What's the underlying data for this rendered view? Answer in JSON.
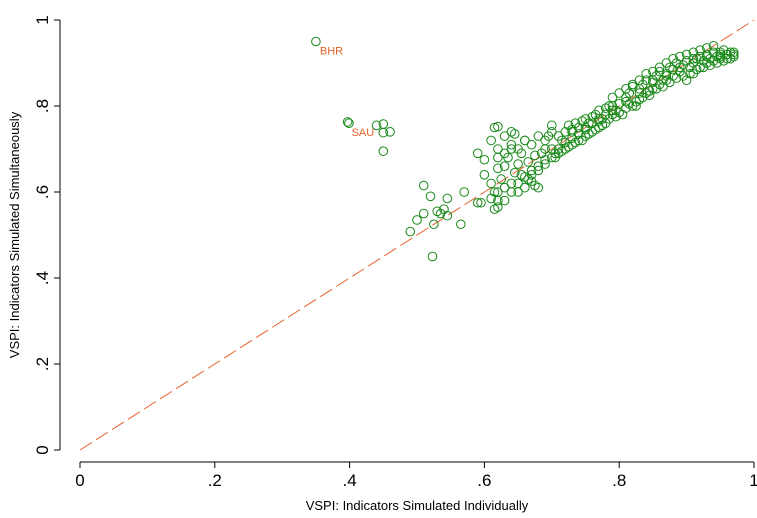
{
  "chart_data": {
    "type": "scatter",
    "xlabel": "VSPI: Indicators Simulated Individually",
    "ylabel": "VSPI: Indicators Simulated Simultaneously",
    "xlim": [
      0,
      1
    ],
    "ylim": [
      0,
      1
    ],
    "x_ticks": [
      0,
      0.2,
      0.4,
      0.6,
      0.8,
      1
    ],
    "x_tick_labels": [
      "0",
      ".2",
      ".4",
      ".6",
      ".8",
      "1"
    ],
    "y_ticks": [
      0,
      0.2,
      0.4,
      0.6,
      0.8,
      1
    ],
    "y_tick_labels": [
      "0",
      ".2",
      ".4",
      ".6",
      ".8",
      "1"
    ],
    "grid": false,
    "marker_color": "#1a8a1a",
    "reference_line": {
      "style": "dashed",
      "color": "#e8632b",
      "from": [
        0,
        0
      ],
      "to": [
        1,
        1
      ]
    },
    "annotations": [
      {
        "text": "BHR",
        "x": 0.35,
        "y": 0.95,
        "color": "#e8632b"
      },
      {
        "text": "SAU",
        "x": 0.397,
        "y": 0.76,
        "color": "#e8632b"
      }
    ],
    "series": [
      {
        "marker": "hollow-circle",
        "points": [
          [
            0.35,
            0.95
          ],
          [
            0.397,
            0.763
          ],
          [
            0.399,
            0.76
          ],
          [
            0.44,
            0.755
          ],
          [
            0.45,
            0.758
          ],
          [
            0.45,
            0.738
          ],
          [
            0.46,
            0.74
          ],
          [
            0.45,
            0.695
          ],
          [
            0.51,
            0.615
          ],
          [
            0.52,
            0.59
          ],
          [
            0.5,
            0.535
          ],
          [
            0.51,
            0.55
          ],
          [
            0.53,
            0.555
          ],
          [
            0.535,
            0.55
          ],
          [
            0.54,
            0.56
          ],
          [
            0.525,
            0.525
          ],
          [
            0.49,
            0.508
          ],
          [
            0.545,
            0.585
          ],
          [
            0.57,
            0.6
          ],
          [
            0.565,
            0.525
          ],
          [
            0.523,
            0.45
          ],
          [
            0.545,
            0.545
          ],
          [
            0.59,
            0.69
          ],
          [
            0.6,
            0.675
          ],
          [
            0.61,
            0.72
          ],
          [
            0.615,
            0.75
          ],
          [
            0.62,
            0.752
          ],
          [
            0.63,
            0.73
          ],
          [
            0.64,
            0.74
          ],
          [
            0.645,
            0.735
          ],
          [
            0.6,
            0.64
          ],
          [
            0.61,
            0.62
          ],
          [
            0.615,
            0.6
          ],
          [
            0.62,
            0.58
          ],
          [
            0.62,
            0.655
          ],
          [
            0.625,
            0.63
          ],
          [
            0.63,
            0.66
          ],
          [
            0.635,
            0.68
          ],
          [
            0.64,
            0.7
          ],
          [
            0.645,
            0.645
          ],
          [
            0.65,
            0.665
          ],
          [
            0.655,
            0.69
          ],
          [
            0.66,
            0.72
          ],
          [
            0.665,
            0.63
          ],
          [
            0.67,
            0.65
          ],
          [
            0.675,
            0.615
          ],
          [
            0.68,
            0.66
          ],
          [
            0.69,
            0.7
          ],
          [
            0.695,
            0.73
          ],
          [
            0.7,
            0.755
          ],
          [
            0.705,
            0.68
          ],
          [
            0.71,
            0.7
          ],
          [
            0.715,
            0.72
          ],
          [
            0.72,
            0.74
          ],
          [
            0.59,
            0.575
          ],
          [
            0.595,
            0.575
          ],
          [
            0.615,
            0.56
          ],
          [
            0.62,
            0.565
          ],
          [
            0.63,
            0.58
          ],
          [
            0.65,
            0.6
          ],
          [
            0.66,
            0.61
          ],
          [
            0.67,
            0.625
          ],
          [
            0.68,
            0.61
          ],
          [
            0.64,
            0.62
          ],
          [
            0.655,
            0.64
          ],
          [
            0.665,
            0.67
          ],
          [
            0.675,
            0.685
          ],
          [
            0.685,
            0.69
          ],
          [
            0.69,
            0.675
          ],
          [
            0.7,
            0.7
          ],
          [
            0.725,
            0.755
          ],
          [
            0.73,
            0.74
          ],
          [
            0.735,
            0.76
          ],
          [
            0.74,
            0.735
          ],
          [
            0.745,
            0.765
          ],
          [
            0.75,
            0.745
          ],
          [
            0.755,
            0.76
          ],
          [
            0.76,
            0.775
          ],
          [
            0.765,
            0.78
          ],
          [
            0.77,
            0.79
          ],
          [
            0.775,
            0.77
          ],
          [
            0.78,
            0.795
          ],
          [
            0.785,
            0.8
          ],
          [
            0.79,
            0.82
          ],
          [
            0.795,
            0.79
          ],
          [
            0.8,
            0.805
          ],
          [
            0.81,
            0.82
          ],
          [
            0.815,
            0.83
          ],
          [
            0.82,
            0.845
          ],
          [
            0.825,
            0.81
          ],
          [
            0.83,
            0.84
          ],
          [
            0.835,
            0.85
          ],
          [
            0.84,
            0.86
          ],
          [
            0.845,
            0.835
          ],
          [
            0.85,
            0.855
          ],
          [
            0.855,
            0.87
          ],
          [
            0.86,
            0.88
          ],
          [
            0.865,
            0.86
          ],
          [
            0.87,
            0.875
          ],
          [
            0.875,
            0.89
          ],
          [
            0.88,
            0.885
          ],
          [
            0.885,
            0.9
          ],
          [
            0.89,
            0.88
          ],
          [
            0.895,
            0.895
          ],
          [
            0.9,
            0.905
          ],
          [
            0.905,
            0.89
          ],
          [
            0.91,
            0.9
          ],
          [
            0.915,
            0.91
          ],
          [
            0.92,
            0.915
          ],
          [
            0.925,
            0.905
          ],
          [
            0.93,
            0.92
          ],
          [
            0.935,
            0.91
          ],
          [
            0.94,
            0.925
          ],
          [
            0.945,
            0.915
          ],
          [
            0.95,
            0.925
          ],
          [
            0.955,
            0.93
          ],
          [
            0.96,
            0.92
          ],
          [
            0.965,
            0.925
          ],
          [
            0.97,
            0.915
          ],
          [
            0.965,
            0.91
          ],
          [
            0.955,
            0.905
          ],
          [
            0.945,
            0.9
          ],
          [
            0.935,
            0.895
          ],
          [
            0.925,
            0.89
          ],
          [
            0.915,
            0.885
          ],
          [
            0.905,
            0.875
          ],
          [
            0.895,
            0.87
          ],
          [
            0.885,
            0.865
          ],
          [
            0.875,
            0.855
          ],
          [
            0.865,
            0.845
          ],
          [
            0.855,
            0.84
          ],
          [
            0.845,
            0.825
          ],
          [
            0.835,
            0.82
          ],
          [
            0.825,
            0.8
          ],
          [
            0.815,
            0.805
          ],
          [
            0.805,
            0.78
          ],
          [
            0.795,
            0.775
          ],
          [
            0.785,
            0.77
          ],
          [
            0.775,
            0.755
          ],
          [
            0.765,
            0.745
          ],
          [
            0.755,
            0.735
          ],
          [
            0.745,
            0.72
          ],
          [
            0.735,
            0.715
          ],
          [
            0.725,
            0.705
          ],
          [
            0.715,
            0.695
          ],
          [
            0.705,
            0.69
          ],
          [
            0.72,
            0.715
          ],
          [
            0.73,
            0.725
          ],
          [
            0.74,
            0.75
          ],
          [
            0.75,
            0.77
          ],
          [
            0.76,
            0.76
          ],
          [
            0.77,
            0.765
          ],
          [
            0.78,
            0.78
          ],
          [
            0.79,
            0.8
          ],
          [
            0.8,
            0.83
          ],
          [
            0.81,
            0.84
          ],
          [
            0.82,
            0.85
          ],
          [
            0.83,
            0.86
          ],
          [
            0.84,
            0.875
          ],
          [
            0.85,
            0.88
          ],
          [
            0.86,
            0.89
          ],
          [
            0.87,
            0.9
          ],
          [
            0.88,
            0.91
          ],
          [
            0.89,
            0.915
          ],
          [
            0.9,
            0.92
          ],
          [
            0.91,
            0.925
          ],
          [
            0.92,
            0.93
          ],
          [
            0.93,
            0.935
          ],
          [
            0.94,
            0.94
          ],
          [
            0.95,
            0.915
          ],
          [
            0.96,
            0.91
          ],
          [
            0.97,
            0.925
          ],
          [
            0.9,
            0.86
          ],
          [
            0.91,
            0.875
          ],
          [
            0.92,
            0.89
          ],
          [
            0.93,
            0.9
          ],
          [
            0.94,
            0.905
          ],
          [
            0.95,
            0.91
          ],
          [
            0.88,
            0.87
          ],
          [
            0.87,
            0.86
          ],
          [
            0.86,
            0.85
          ],
          [
            0.85,
            0.84
          ],
          [
            0.84,
            0.83
          ],
          [
            0.83,
            0.815
          ],
          [
            0.82,
            0.8
          ],
          [
            0.81,
            0.795
          ],
          [
            0.8,
            0.785
          ],
          [
            0.79,
            0.78
          ],
          [
            0.78,
            0.76
          ],
          [
            0.77,
            0.75
          ],
          [
            0.76,
            0.74
          ],
          [
            0.75,
            0.73
          ],
          [
            0.74,
            0.72
          ],
          [
            0.73,
            0.71
          ],
          [
            0.72,
            0.7
          ],
          [
            0.71,
            0.69
          ],
          [
            0.7,
            0.68
          ],
          [
            0.69,
            0.665
          ],
          [
            0.68,
            0.65
          ],
          [
            0.67,
            0.64
          ],
          [
            0.66,
            0.635
          ],
          [
            0.65,
            0.62
          ],
          [
            0.64,
            0.6
          ],
          [
            0.63,
            0.61
          ],
          [
            0.62,
            0.6
          ],
          [
            0.61,
            0.585
          ],
          [
            0.62,
            0.7
          ],
          [
            0.64,
            0.71
          ],
          [
            0.66,
            0.72
          ],
          [
            0.68,
            0.73
          ],
          [
            0.7,
            0.74
          ],
          [
            0.62,
            0.68
          ],
          [
            0.63,
            0.69
          ],
          [
            0.65,
            0.7
          ],
          [
            0.67,
            0.71
          ],
          [
            0.69,
            0.72
          ],
          [
            0.71,
            0.73
          ],
          [
            0.73,
            0.745
          ],
          [
            0.75,
            0.75
          ],
          [
            0.77,
            0.77
          ],
          [
            0.79,
            0.79
          ],
          [
            0.81,
            0.81
          ],
          [
            0.83,
            0.83
          ],
          [
            0.85,
            0.86
          ],
          [
            0.87,
            0.87
          ],
          [
            0.89,
            0.89
          ],
          [
            0.91,
            0.91
          ],
          [
            0.93,
            0.915
          ],
          [
            0.95,
            0.92
          ],
          [
            0.97,
            0.92
          ]
        ]
      }
    ]
  }
}
